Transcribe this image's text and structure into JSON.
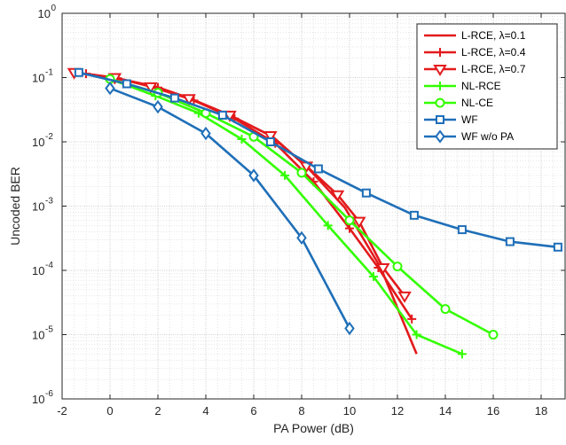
{
  "chart_data": {
    "type": "line",
    "title": "",
    "xlabel": "PA Power (dB)",
    "ylabel": "Uncoded BER",
    "xlim": [
      -2,
      19
    ],
    "ylim_exponent": [
      -6,
      0
    ],
    "yscale": "log",
    "grid": true,
    "minor_grid": true,
    "legend_position": "top-right",
    "x_ticks": [
      "-2",
      "0",
      "2",
      "4",
      "6",
      "8",
      "10",
      "12",
      "14",
      "16",
      "18"
    ],
    "x_tick_values": [
      -2,
      0,
      2,
      4,
      6,
      8,
      10,
      12,
      14,
      16,
      18
    ],
    "y_ticks": [
      {
        "base": "10",
        "exp": "0",
        "value": 1
      },
      {
        "base": "10",
        "exp": "-1",
        "value": 0.1
      },
      {
        "base": "10",
        "exp": "-2",
        "value": 0.01
      },
      {
        "base": "10",
        "exp": "-3",
        "value": 0.001
      },
      {
        "base": "10",
        "exp": "-4",
        "value": 0.0001
      },
      {
        "base": "10",
        "exp": "-5",
        "value": 1e-05
      },
      {
        "base": "10",
        "exp": "-6",
        "value": 1e-06
      }
    ],
    "series": [
      {
        "name": "L-RCE, λ=0.1",
        "color": "#e31a1c",
        "marker": "none",
        "x": [
          -1.5,
          0,
          1.8,
          3.3,
          5.0,
          6.8,
          8.3,
          9.8,
          11.3,
          12.8
        ],
        "y": [
          0.12,
          0.1,
          0.075,
          0.048,
          0.026,
          0.012,
          0.0038,
          0.00095,
          0.00011,
          5e-06
        ]
      },
      {
        "name": "L-RCE, λ=0.4",
        "color": "#e31a1c",
        "marker": "plus",
        "x": [
          -1.0,
          0.3,
          2.0,
          3.5,
          5.2,
          6.9,
          8.5,
          10.0,
          11.2,
          12.6
        ],
        "y": [
          0.115,
          0.098,
          0.07,
          0.044,
          0.023,
          0.0095,
          0.0024,
          0.00045,
          0.00011,
          1.75e-05
        ]
      },
      {
        "name": "L-RCE, λ=0.7",
        "color": "#e31a1c",
        "marker": "triangle-down",
        "x": [
          -1.5,
          0.2,
          1.7,
          3.3,
          5.0,
          6.7,
          8.2,
          9.5,
          10.4,
          11.4,
          12.3
        ],
        "y": [
          0.12,
          0.1,
          0.072,
          0.047,
          0.026,
          0.0125,
          0.0042,
          0.0015,
          0.00058,
          0.00011,
          4e-05
        ]
      },
      {
        "name": "NL-RCE",
        "color": "#33ff00",
        "marker": "plus",
        "x": [
          0,
          1.9,
          3.7,
          5.5,
          7.3,
          9.1,
          11.0,
          12.8,
          14.7
        ],
        "y": [
          0.095,
          0.052,
          0.028,
          0.011,
          0.003,
          0.0005,
          8e-05,
          1e-05,
          5e-06
        ]
      },
      {
        "name": "NL-CE",
        "color": "#33ff00",
        "marker": "circle",
        "x": [
          0,
          2.0,
          4.0,
          6.0,
          8.0,
          10.0,
          12.0,
          14.0,
          16.0
        ],
        "y": [
          0.095,
          0.058,
          0.028,
          0.012,
          0.0033,
          0.0006,
          0.000115,
          2.5e-05,
          1e-05
        ]
      },
      {
        "name": "WF",
        "color": "#1f6fb8",
        "marker": "square",
        "x": [
          -1.3,
          0.7,
          2.7,
          4.7,
          6.7,
          8.7,
          10.7,
          12.7,
          14.7,
          16.7,
          18.7
        ],
        "y": [
          0.12,
          0.08,
          0.048,
          0.026,
          0.01,
          0.0038,
          0.0016,
          0.00072,
          0.00043,
          0.00028,
          0.00023
        ]
      },
      {
        "name": "WF w/o PA",
        "color": "#1f6fb8",
        "marker": "diamond",
        "x": [
          0,
          2.0,
          4.0,
          6.0,
          8.0,
          10.0
        ],
        "y": [
          0.068,
          0.035,
          0.0135,
          0.003,
          0.00032,
          1.25e-05
        ]
      }
    ]
  }
}
